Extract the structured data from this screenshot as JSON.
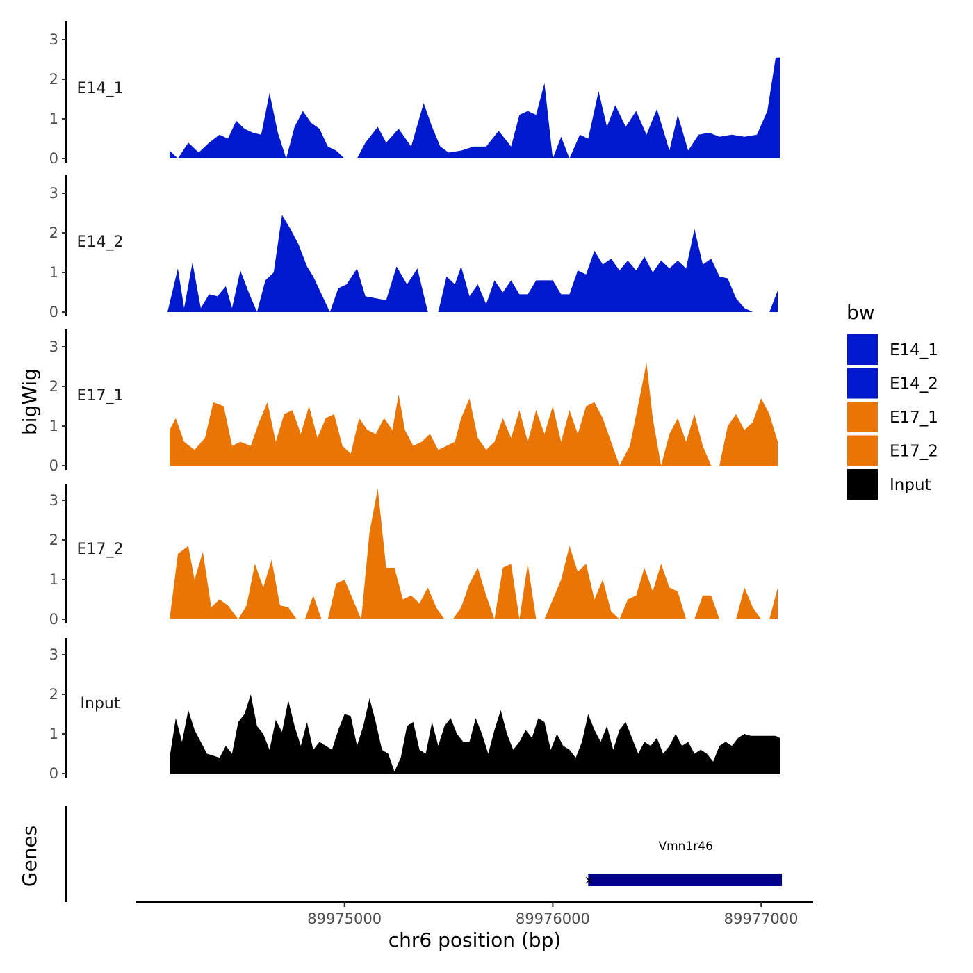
{
  "chart_data": {
    "type": "area",
    "title": "",
    "xlabel": "chr6 position (bp)",
    "ylabel": "bigWig",
    "genes_label": "Genes",
    "xlim": [
      89974000,
      89977250
    ],
    "xticks": [
      89975000,
      89976000,
      89977000
    ],
    "xtick_labels": [
      "89975000",
      "89976000",
      "89977000"
    ],
    "ylim": [
      0,
      3.3
    ],
    "yticks": [
      0,
      1,
      2,
      3
    ],
    "ytick_labels": [
      "0",
      "1",
      "2",
      "3"
    ],
    "legend": {
      "title": "bw",
      "position": "right",
      "entries": [
        {
          "label": "E14_1",
          "color": "#0019CC"
        },
        {
          "label": "E14_2",
          "color": "#0019CC"
        },
        {
          "label": "E17_1",
          "color": "#E87504"
        },
        {
          "label": "E17_2",
          "color": "#E87504"
        },
        {
          "label": "Input",
          "color": "#000000"
        }
      ]
    },
    "series": [
      {
        "name": "E14_1",
        "color": "#0019CC",
        "x": [
          89974160,
          89974200,
          89974250,
          89974300,
          89974350,
          89974400,
          89974440,
          89974480,
          89974520,
          89974560,
          89974600,
          89974640,
          89974680,
          89974720,
          89974760,
          89974800,
          89974840,
          89974880,
          89974920,
          89974960,
          89975000,
          89975060,
          89975100,
          89975160,
          89975200,
          89975260,
          89975320,
          89975380,
          89975420,
          89975460,
          89975500,
          89975560,
          89975620,
          89975680,
          89975740,
          89975800,
          89975840,
          89975880,
          89975920,
          89975960,
          89976000,
          89976040,
          89976080,
          89976130,
          89976170,
          89976220,
          89976260,
          89976300,
          89976350,
          89976400,
          89976450,
          89976500,
          89976560,
          89976600,
          89976650,
          89976700,
          89976750,
          89976800,
          89976860,
          89976920,
          89976980,
          89977030,
          89977070,
          89977090
        ],
        "y": [
          0.2,
          0.0,
          0.4,
          0.15,
          0.4,
          0.6,
          0.5,
          0.95,
          0.75,
          0.65,
          0.6,
          1.65,
          0.65,
          0.0,
          0.8,
          1.2,
          0.9,
          0.75,
          0.3,
          0.2,
          0.0,
          0.0,
          0.4,
          0.8,
          0.4,
          0.75,
          0.3,
          1.4,
          0.8,
          0.3,
          0.15,
          0.2,
          0.3,
          0.3,
          0.7,
          0.3,
          1.1,
          1.2,
          1.1,
          1.9,
          0.0,
          0.55,
          0.0,
          0.6,
          0.5,
          1.7,
          0.8,
          1.35,
          0.8,
          1.2,
          0.6,
          1.25,
          0.2,
          1.1,
          0.2,
          0.6,
          0.65,
          0.55,
          0.6,
          0.55,
          0.6,
          1.2,
          2.55,
          2.55
        ]
      },
      {
        "name": "E14_2",
        "color": "#0019CC",
        "x": [
          89974150,
          89974200,
          89974230,
          89974270,
          89974310,
          89974350,
          89974390,
          89974430,
          89974460,
          89974500,
          89974540,
          89974580,
          89974620,
          89974660,
          89974700,
          89974740,
          89974780,
          89974820,
          89974850,
          89974890,
          89974930,
          89974970,
          89975010,
          89975060,
          89975100,
          89975150,
          89975200,
          89975250,
          89975300,
          89975350,
          89975400,
          89975450,
          89975490,
          89975530,
          89975560,
          89975600,
          89975640,
          89975680,
          89975720,
          89975760,
          89975800,
          89975840,
          89975880,
          89975920,
          89975960,
          89976000,
          89976040,
          89976080,
          89976120,
          89976160,
          89976200,
          89976240,
          89976280,
          89976320,
          89976360,
          89976400,
          89976440,
          89976480,
          89976520,
          89976560,
          89976600,
          89976640,
          89976680,
          89976720,
          89976760,
          89976800,
          89976840,
          89976880,
          89976920,
          89976960,
          89977000,
          89977040,
          89977080
        ],
        "y": [
          0.0,
          1.1,
          0.1,
          1.25,
          0.1,
          0.45,
          0.4,
          0.65,
          0.1,
          1.05,
          0.5,
          0.0,
          0.8,
          1.0,
          2.45,
          2.1,
          1.7,
          1.15,
          0.9,
          0.45,
          0.0,
          0.6,
          0.7,
          1.1,
          0.4,
          0.35,
          0.3,
          1.15,
          0.7,
          1.1,
          0.0,
          0.0,
          0.9,
          0.7,
          1.15,
          0.4,
          0.7,
          0.2,
          0.8,
          0.5,
          0.8,
          0.45,
          0.45,
          0.8,
          0.8,
          0.8,
          0.45,
          0.45,
          1.05,
          0.95,
          1.55,
          1.2,
          1.35,
          1.05,
          1.3,
          1.05,
          1.4,
          1.0,
          1.3,
          1.1,
          1.3,
          1.1,
          2.1,
          1.2,
          1.35,
          0.9,
          0.85,
          0.35,
          0.1,
          0.0,
          0.0,
          0.0,
          0.55
        ]
      },
      {
        "name": "E17_1",
        "color": "#E87504",
        "x": [
          89974160,
          89974190,
          89974230,
          89974280,
          89974330,
          89974370,
          89974420,
          89974460,
          89974500,
          89974550,
          89974590,
          89974630,
          89974670,
          89974710,
          89974750,
          89974790,
          89974830,
          89974870,
          89974910,
          89974950,
          89974990,
          89975030,
          89975070,
          89975110,
          89975150,
          89975190,
          89975230,
          89975260,
          89975290,
          89975330,
          89975370,
          89975410,
          89975450,
          89975490,
          89975530,
          89975560,
          89975600,
          89975640,
          89975680,
          89975720,
          89975760,
          89975800,
          89975840,
          89975880,
          89975920,
          89975960,
          89976000,
          89976040,
          89976080,
          89976120,
          89976160,
          89976200,
          89976240,
          89976280,
          89976320,
          89976370,
          89976420,
          89976450,
          89976480,
          89976520,
          89976560,
          89976600,
          89976640,
          89976680,
          89976720,
          89976760,
          89976800,
          89976840,
          89976880,
          89976920,
          89976960,
          89977000,
          89977040,
          89977080
        ],
        "y": [
          0.9,
          1.2,
          0.6,
          0.4,
          0.7,
          1.6,
          1.5,
          0.5,
          0.6,
          0.5,
          1.1,
          1.6,
          0.6,
          1.3,
          1.4,
          0.8,
          1.5,
          0.7,
          1.2,
          1.3,
          0.5,
          0.3,
          1.2,
          0.9,
          0.8,
          1.2,
          0.9,
          1.8,
          0.9,
          0.5,
          0.6,
          0.8,
          0.4,
          0.5,
          0.6,
          1.2,
          1.7,
          0.7,
          0.4,
          0.6,
          1.2,
          0.7,
          1.4,
          0.6,
          1.4,
          0.8,
          1.5,
          0.6,
          1.4,
          0.8,
          1.5,
          1.6,
          1.2,
          0.6,
          0.0,
          0.5,
          1.8,
          2.6,
          1.2,
          0.0,
          0.8,
          1.2,
          0.6,
          1.3,
          0.5,
          0.0,
          0.0,
          1.0,
          1.3,
          0.9,
          1.1,
          1.7,
          1.3,
          0.6
        ]
      },
      {
        "name": "E17_2",
        "color": "#E87504",
        "x": [
          89974160,
          89974200,
          89974250,
          89974280,
          89974320,
          89974360,
          89974400,
          89974440,
          89974490,
          89974530,
          89974570,
          89974610,
          89974650,
          89974690,
          89974730,
          89974770,
          89974810,
          89974850,
          89974890,
          89974920,
          89974960,
          89975000,
          89975040,
          89975080,
          89975120,
          89975160,
          89975200,
          89975240,
          89975280,
          89975320,
          89975360,
          89975400,
          89975440,
          89975480,
          89975520,
          89975560,
          89975600,
          89975640,
          89975680,
          89975720,
          89975760,
          89975800,
          89975840,
          89975880,
          89975920,
          89975960,
          89976000,
          89976040,
          89976080,
          89976120,
          89976160,
          89976200,
          89976240,
          89976280,
          89976320,
          89976360,
          89976400,
          89976440,
          89976480,
          89976520,
          89976560,
          89976600,
          89976640,
          89976680,
          89976720,
          89976760,
          89976800,
          89976840,
          89976880,
          89976920,
          89976960,
          89977000,
          89977040,
          89977080
        ],
        "y": [
          0.0,
          1.65,
          1.85,
          1.0,
          1.7,
          0.3,
          0.5,
          0.35,
          0.0,
          0.35,
          1.4,
          0.8,
          1.5,
          0.35,
          0.3,
          0.0,
          0.0,
          0.6,
          0.0,
          0.0,
          0.9,
          1.0,
          0.5,
          0.0,
          2.2,
          3.3,
          1.3,
          1.3,
          0.5,
          0.6,
          0.4,
          0.8,
          0.3,
          0.0,
          0.0,
          0.3,
          0.9,
          1.3,
          0.6,
          0.0,
          1.3,
          1.4,
          0.0,
          1.4,
          0.0,
          0.0,
          0.5,
          1.0,
          1.85,
          1.2,
          1.4,
          0.5,
          1.0,
          0.2,
          0.0,
          0.5,
          0.6,
          1.3,
          0.7,
          1.4,
          0.8,
          0.7,
          0.0,
          0.0,
          0.6,
          0.6,
          0.0,
          0.0,
          0.0,
          0.8,
          0.3,
          0.0,
          0.0,
          0.8
        ]
      },
      {
        "name": "Input",
        "color": "#000000",
        "x": [
          89974160,
          89974190,
          89974220,
          89974250,
          89974280,
          89974310,
          89974340,
          89974370,
          89974400,
          89974430,
          89974460,
          89974490,
          89974520,
          89974550,
          89974580,
          89974610,
          89974640,
          89974670,
          89974700,
          89974730,
          89974760,
          89974790,
          89974820,
          89974850,
          89974880,
          89974910,
          89974940,
          89974970,
          89975000,
          89975030,
          89975060,
          89975090,
          89975120,
          89975150,
          89975180,
          89975210,
          89975240,
          89975270,
          89975300,
          89975330,
          89975360,
          89975390,
          89975420,
          89975450,
          89975480,
          89975510,
          89975540,
          89975570,
          89975600,
          89975630,
          89975660,
          89975690,
          89975720,
          89975750,
          89975780,
          89975810,
          89975840,
          89975870,
          89975900,
          89975930,
          89975960,
          89975990,
          89976020,
          89976050,
          89976080,
          89976110,
          89976140,
          89976170,
          89976200,
          89976230,
          89976260,
          89976290,
          89976320,
          89976350,
          89976380,
          89976410,
          89976440,
          89976470,
          89976500,
          89976530,
          89976560,
          89976590,
          89976620,
          89976650,
          89976680,
          89976710,
          89976740,
          89976770,
          89976800,
          89976830,
          89976860,
          89976890,
          89976920,
          89976950,
          89976980,
          89977010,
          89977040,
          89977070,
          89977090
        ],
        "y": [
          0.4,
          1.4,
          0.8,
          1.6,
          1.1,
          0.8,
          0.5,
          0.45,
          0.4,
          0.7,
          0.5,
          1.3,
          1.5,
          2.0,
          1.2,
          1.0,
          0.6,
          1.35,
          1.05,
          1.85,
          1.2,
          0.7,
          1.3,
          0.6,
          0.8,
          0.7,
          0.6,
          1.1,
          1.5,
          1.45,
          0.7,
          1.2,
          1.9,
          1.3,
          0.6,
          0.5,
          0.05,
          0.4,
          1.2,
          1.3,
          0.6,
          0.5,
          1.3,
          0.7,
          1.2,
          1.4,
          1.0,
          0.8,
          0.8,
          1.4,
          1.0,
          0.5,
          1.1,
          1.6,
          1.0,
          0.6,
          0.8,
          1.1,
          0.9,
          1.4,
          1.3,
          0.6,
          1.0,
          0.7,
          0.6,
          0.4,
          0.8,
          1.5,
          1.1,
          0.8,
          1.2,
          0.6,
          1.1,
          1.3,
          0.9,
          0.5,
          0.8,
          0.7,
          0.9,
          0.5,
          0.7,
          1.0,
          0.7,
          0.8,
          0.5,
          0.6,
          0.5,
          0.3,
          0.7,
          0.8,
          0.7,
          0.9,
          1.0,
          0.95,
          0.95,
          0.95,
          0.95,
          0.95,
          0.9
        ]
      }
    ],
    "genes": [
      {
        "name": "Vmn1r46",
        "start": 89976170,
        "end": 89977100
      }
    ]
  }
}
